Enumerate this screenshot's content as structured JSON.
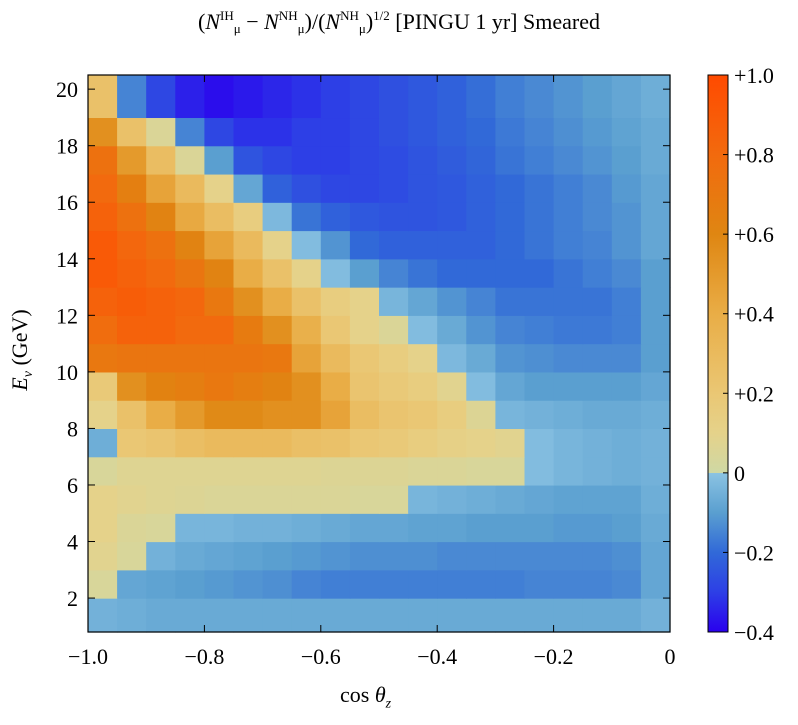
{
  "chart_data": {
    "type": "heatmap",
    "title": {
      "open": "(",
      "n1": "N",
      "n1_sup": "IH",
      "n1_sub": "μ",
      "minus": " − ",
      "n2": "N",
      "n2_sup": "NH",
      "n2_sub": "μ",
      "mid": ")/(",
      "n3": "N",
      "n3_sup": "NH",
      "n3_sub": "μ",
      "close": ")",
      "exp": "1/2",
      "rest": " [PINGU 1 yr] Smeared"
    },
    "xlabel": {
      "text": "cos ",
      "sym": "θ",
      "sub": "z"
    },
    "ylabel": {
      "sym": "E",
      "sub": "ν",
      "text": " (GeV)"
    },
    "xlim": [
      -1.0,
      0.0
    ],
    "ylim": [
      0.8,
      20.5
    ],
    "x_ticks": [
      {
        "v": -1.0,
        "label": "−1.0"
      },
      {
        "v": -0.8,
        "label": "−0.8"
      },
      {
        "v": -0.6,
        "label": "−0.6"
      },
      {
        "v": -0.4,
        "label": "−0.4"
      },
      {
        "v": -0.2,
        "label": "−0.2"
      },
      {
        "v": 0.0,
        "label": "0"
      }
    ],
    "y_ticks": [
      {
        "v": 2,
        "label": "2"
      },
      {
        "v": 4,
        "label": "4"
      },
      {
        "v": 6,
        "label": "6"
      },
      {
        "v": 8,
        "label": "8"
      },
      {
        "v": 10,
        "label": "10"
      },
      {
        "v": 12,
        "label": "12"
      },
      {
        "v": 14,
        "label": "14"
      },
      {
        "v": 16,
        "label": "16"
      },
      {
        "v": 18,
        "label": "18"
      },
      {
        "v": 20,
        "label": "20"
      }
    ],
    "colorbar": {
      "min": -0.4,
      "max": 1.0,
      "ticks": [
        {
          "v": 1.0,
          "label": "+1.0"
        },
        {
          "v": 0.8,
          "label": "+0.8"
        },
        {
          "v": 0.6,
          "label": "+0.6"
        },
        {
          "v": 0.4,
          "label": "+0.4"
        },
        {
          "v": 0.2,
          "label": "+0.2"
        },
        {
          "v": 0.0,
          "label": "0"
        },
        {
          "v": -0.2,
          "label": "−0.2"
        },
        {
          "v": -0.4,
          "label": "−0.4"
        }
      ],
      "color_stops": [
        {
          "v": -0.4,
          "color": "#2a00ee"
        },
        {
          "v": -0.3,
          "color": "#2d3fe6"
        },
        {
          "v": -0.2,
          "color": "#3169d8"
        },
        {
          "v": -0.1,
          "color": "#5a9fd0"
        },
        {
          "v": -0.001,
          "color": "#8bc3e2"
        },
        {
          "v": 0.0,
          "color": "#cfd8a4"
        },
        {
          "v": 0.1,
          "color": "#e5d28a"
        },
        {
          "v": 0.2,
          "color": "#eac774"
        },
        {
          "v": 0.4,
          "color": "#e9ad46"
        },
        {
          "v": 0.6,
          "color": "#df8612"
        },
        {
          "v": 0.8,
          "color": "#f26a0e"
        },
        {
          "v": 1.0,
          "color": "#ff4a00"
        }
      ]
    },
    "x_edges": [
      -1.0,
      -0.95,
      -0.9,
      -0.85,
      -0.8,
      -0.75,
      -0.7,
      -0.65,
      -0.6,
      -0.55,
      -0.5,
      -0.45,
      -0.4,
      -0.35,
      -0.3,
      -0.25,
      -0.2,
      -0.15,
      -0.1,
      -0.05,
      0.0
    ],
    "y_edges": [
      0.8,
      2.0,
      3.0,
      4.0,
      5.0,
      6.0,
      7.0,
      8.0,
      9.0,
      10.0,
      11.0,
      12.0,
      13.0,
      14.0,
      15.0,
      16.0,
      17.0,
      18.0,
      19.0,
      20.5
    ],
    "z": [
      [
        -0.05,
        -0.06,
        -0.07,
        -0.07,
        -0.07,
        -0.07,
        -0.07,
        -0.07,
        -0.07,
        -0.07,
        -0.07,
        -0.07,
        -0.07,
        -0.07,
        -0.07,
        -0.07,
        -0.07,
        -0.07,
        -0.07,
        -0.05
      ],
      [
        0.04,
        -0.08,
        -0.09,
        -0.1,
        -0.11,
        -0.12,
        -0.13,
        -0.15,
        -0.16,
        -0.16,
        -0.16,
        -0.16,
        -0.16,
        -0.16,
        -0.16,
        -0.15,
        -0.15,
        -0.15,
        -0.14,
        -0.08
      ],
      [
        0.08,
        0.04,
        -0.05,
        -0.07,
        -0.08,
        -0.09,
        -0.1,
        -0.11,
        -0.12,
        -0.13,
        -0.13,
        -0.13,
        -0.14,
        -0.14,
        -0.14,
        -0.14,
        -0.14,
        -0.14,
        -0.13,
        -0.08
      ],
      [
        0.1,
        0.05,
        0.04,
        -0.04,
        -0.04,
        -0.05,
        -0.05,
        -0.06,
        -0.07,
        -0.08,
        -0.08,
        -0.09,
        -0.09,
        -0.1,
        -0.1,
        -0.1,
        -0.11,
        -0.11,
        -0.1,
        -0.07
      ],
      [
        0.1,
        0.08,
        0.07,
        0.06,
        0.05,
        0.05,
        0.05,
        0.05,
        0.05,
        0.04,
        0.04,
        -0.04,
        -0.05,
        -0.06,
        -0.07,
        -0.08,
        -0.09,
        -0.09,
        -0.09,
        -0.06
      ],
      [
        0.04,
        0.07,
        0.07,
        0.07,
        0.07,
        0.07,
        0.07,
        0.07,
        0.06,
        0.06,
        0.06,
        0.05,
        0.05,
        0.04,
        0.04,
        -0.02,
        -0.04,
        -0.05,
        -0.06,
        -0.05
      ],
      [
        -0.06,
        0.2,
        0.22,
        0.27,
        0.3,
        0.3,
        0.3,
        0.26,
        0.25,
        0.2,
        0.18,
        0.15,
        0.12,
        0.1,
        0.08,
        -0.02,
        -0.04,
        -0.05,
        -0.06,
        -0.05
      ],
      [
        0.1,
        0.25,
        0.4,
        0.5,
        0.58,
        0.58,
        0.55,
        0.55,
        0.45,
        0.28,
        0.22,
        0.2,
        0.15,
        0.06,
        -0.04,
        -0.05,
        -0.06,
        -0.07,
        -0.07,
        -0.06
      ],
      [
        0.18,
        0.55,
        0.63,
        0.66,
        0.7,
        0.66,
        0.62,
        0.55,
        0.4,
        0.22,
        0.18,
        0.15,
        0.08,
        -0.02,
        -0.08,
        -0.1,
        -0.1,
        -0.1,
        -0.1,
        -0.08
      ],
      [
        0.7,
        0.72,
        0.72,
        0.72,
        0.72,
        0.72,
        0.7,
        0.45,
        0.3,
        0.2,
        0.15,
        0.1,
        -0.03,
        -0.07,
        -0.12,
        -0.13,
        -0.14,
        -0.14,
        -0.14,
        -0.1
      ],
      [
        0.78,
        0.85,
        0.85,
        0.8,
        0.8,
        0.68,
        0.55,
        0.38,
        0.2,
        0.1,
        0.05,
        -0.02,
        -0.07,
        -0.12,
        -0.15,
        -0.16,
        -0.17,
        -0.17,
        -0.16,
        -0.1
      ],
      [
        0.85,
        0.88,
        0.85,
        0.82,
        0.7,
        0.55,
        0.4,
        0.25,
        0.15,
        0.1,
        -0.04,
        -0.08,
        -0.12,
        -0.15,
        -0.18,
        -0.18,
        -0.18,
        -0.18,
        -0.16,
        -0.1
      ],
      [
        0.9,
        0.85,
        0.8,
        0.72,
        0.62,
        0.4,
        0.25,
        0.1,
        -0.02,
        -0.1,
        -0.15,
        -0.18,
        -0.2,
        -0.2,
        -0.2,
        -0.2,
        -0.18,
        -0.16,
        -0.14,
        -0.1
      ],
      [
        0.9,
        0.82,
        0.75,
        0.62,
        0.45,
        0.3,
        0.1,
        -0.02,
        -0.12,
        -0.2,
        -0.22,
        -0.22,
        -0.22,
        -0.22,
        -0.2,
        -0.18,
        -0.16,
        -0.15,
        -0.12,
        -0.08
      ],
      [
        0.85,
        0.75,
        0.62,
        0.42,
        0.28,
        0.15,
        -0.03,
        -0.18,
        -0.22,
        -0.24,
        -0.25,
        -0.25,
        -0.24,
        -0.22,
        -0.2,
        -0.18,
        -0.16,
        -0.14,
        -0.12,
        -0.08
      ],
      [
        0.8,
        0.65,
        0.45,
        0.3,
        0.1,
        -0.08,
        -0.22,
        -0.26,
        -0.28,
        -0.28,
        -0.27,
        -0.25,
        -0.24,
        -0.22,
        -0.2,
        -0.18,
        -0.16,
        -0.14,
        -0.11,
        -0.08
      ],
      [
        0.75,
        0.5,
        0.28,
        0.05,
        -0.1,
        -0.25,
        -0.28,
        -0.3,
        -0.3,
        -0.28,
        -0.27,
        -0.25,
        -0.23,
        -0.21,
        -0.18,
        -0.16,
        -0.14,
        -0.12,
        -0.1,
        -0.07
      ],
      [
        0.55,
        0.25,
        0.05,
        -0.15,
        -0.28,
        -0.32,
        -0.32,
        -0.3,
        -0.3,
        -0.28,
        -0.26,
        -0.24,
        -0.22,
        -0.2,
        -0.17,
        -0.15,
        -0.13,
        -0.11,
        -0.09,
        -0.07
      ],
      [
        0.25,
        -0.15,
        -0.28,
        -0.35,
        -0.38,
        -0.36,
        -0.34,
        -0.32,
        -0.3,
        -0.28,
        -0.26,
        -0.24,
        -0.22,
        -0.19,
        -0.16,
        -0.14,
        -0.12,
        -0.1,
        -0.08,
        -0.06
      ]
    ]
  }
}
